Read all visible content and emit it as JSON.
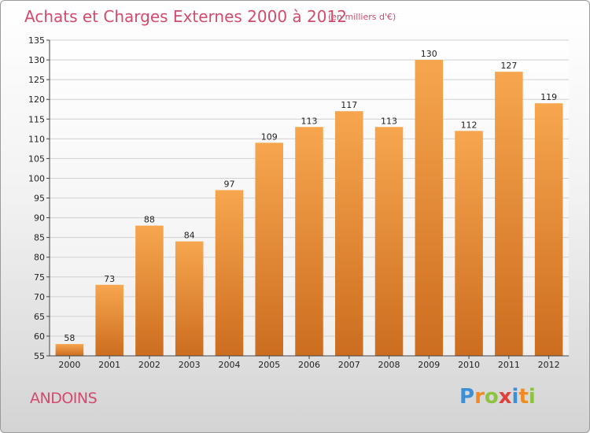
{
  "title": "Achats et Charges Externes 2000 à 2012",
  "subtitle": "(en milliers d'€)",
  "town": "ANDOINS",
  "logo": {
    "letters": [
      "P",
      "r",
      "o",
      "x",
      "i",
      "t",
      "i"
    ]
  },
  "colors": {
    "bar_top": "#f7a64f",
    "bar_bottom": "#cc6d1f",
    "title": "#d24a6c"
  },
  "chart_data": {
    "type": "bar",
    "title": "Achats et Charges Externes 2000 à 2012",
    "subtitle": "(en milliers d'€)",
    "categories": [
      "2000",
      "2001",
      "2002",
      "2003",
      "2004",
      "2005",
      "2006",
      "2007",
      "2008",
      "2009",
      "2010",
      "2011",
      "2012"
    ],
    "values": [
      58,
      73,
      88,
      84,
      97,
      109,
      113,
      117,
      113,
      130,
      112,
      127,
      119
    ],
    "ylim": [
      55,
      135
    ],
    "yticks": [
      55,
      60,
      65,
      70,
      75,
      80,
      85,
      90,
      95,
      100,
      105,
      110,
      115,
      120,
      125,
      130,
      135
    ],
    "grid": true,
    "xlabel": "",
    "ylabel": ""
  }
}
